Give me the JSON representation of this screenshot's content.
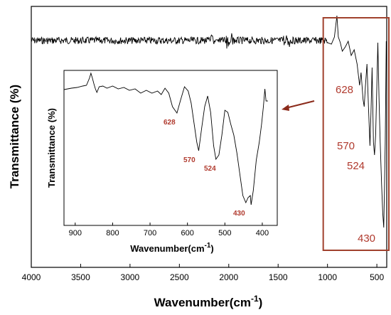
{
  "chart_data": [
    {
      "type": "line",
      "ylabel": "Transmittance (%)",
      "xlabel": "Wavenumber(cm",
      "xlabel_sup": "-1",
      "xlabel_close": ")",
      "xlim": [
        4000,
        400
      ],
      "x_ticks": [
        "4000",
        "3500",
        "3000",
        "2500",
        "2000",
        "1500",
        "1000",
        "500"
      ],
      "x_tick_values": [
        4000,
        3500,
        3000,
        2500,
        2000,
        1500,
        1000,
        500
      ],
      "annotations": [
        "628",
        "570",
        "524",
        "430"
      ],
      "annotation_values": [
        628,
        570,
        524,
        430
      ],
      "highlight_range": [
        1000,
        400
      ],
      "highlight_color": "#a0412d"
    },
    {
      "type": "line",
      "ylabel": "Transmittance (%)",
      "xlabel": "Wavenumber(cm",
      "xlabel_sup": "-1",
      "xlabel_close": ")",
      "xlim": [
        930,
        360
      ],
      "x_ticks": [
        "900",
        "800",
        "700",
        "600",
        "500",
        "400"
      ],
      "x_tick_values": [
        900,
        800,
        700,
        600,
        500,
        400
      ],
      "annotations": [
        "628",
        "570",
        "524",
        "430"
      ],
      "annotation_values": [
        628,
        570,
        524,
        430
      ]
    }
  ]
}
